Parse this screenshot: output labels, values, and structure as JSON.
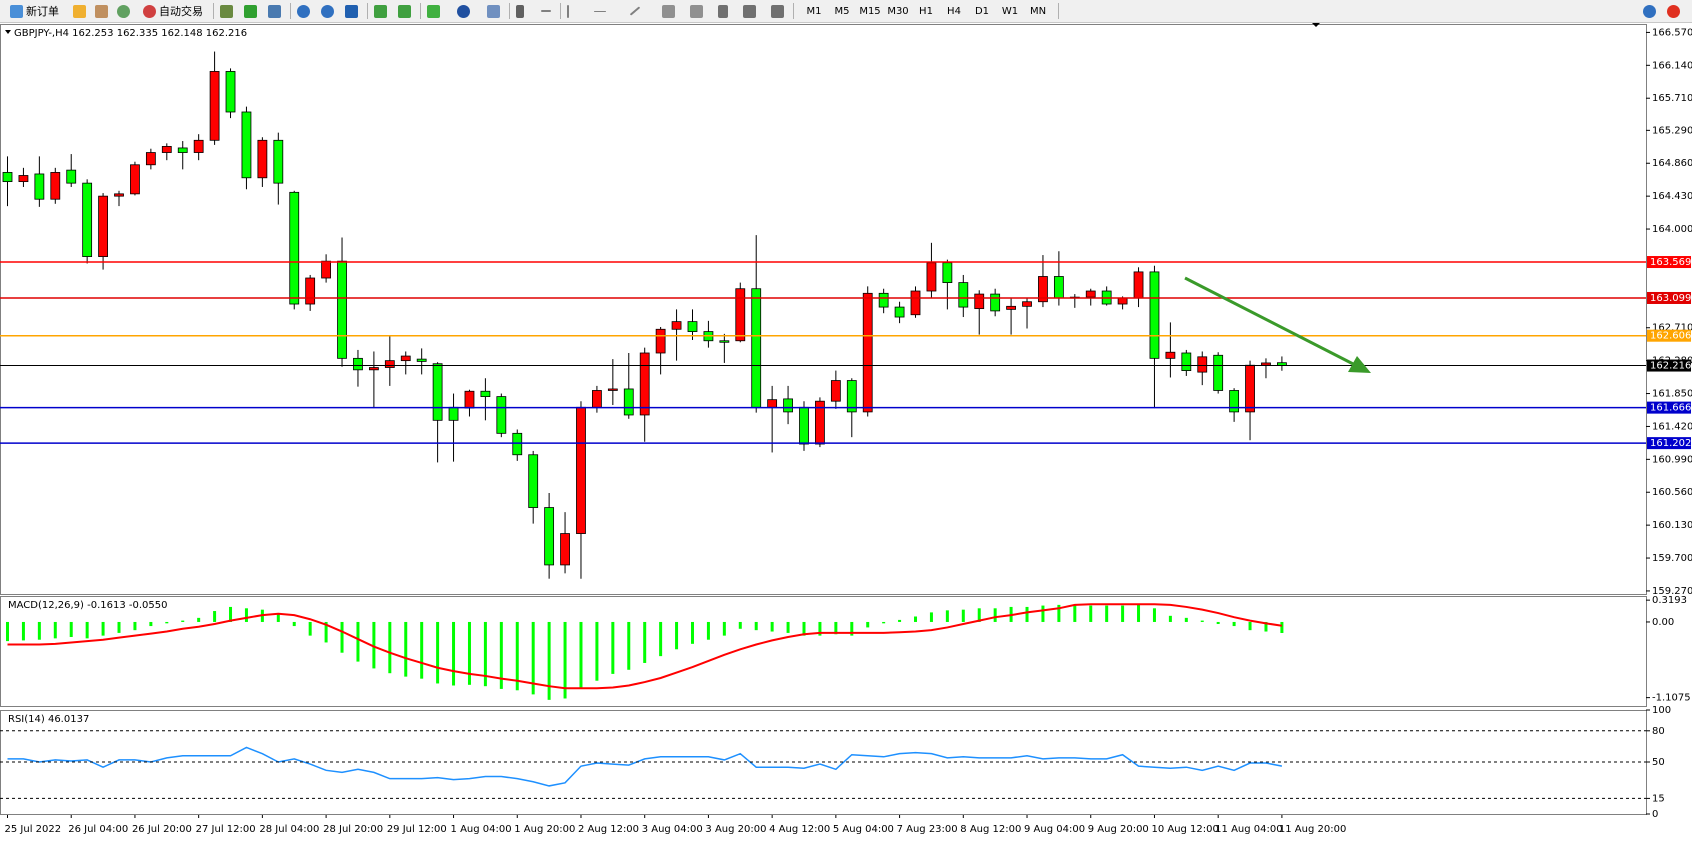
{
  "toolbar": {
    "buttons": [
      "新订单",
      "自动交易"
    ],
    "timeframes": [
      "M1",
      "M5",
      "M15",
      "M30",
      "H1",
      "H4",
      "D1",
      "W1",
      "MN"
    ]
  },
  "chart_data": [
    {
      "type": "candlestick",
      "title": "GBPJPY-,H4 162.253 162.335 162.148 162.216",
      "categories": [
        "25 Jul 2022",
        null,
        null,
        null,
        "26 Jul 04:00",
        null,
        null,
        null,
        "26 Jul 20:00",
        null,
        null,
        null,
        "27 Jul 12:00",
        null,
        null,
        null,
        "28 Jul 04:00",
        null,
        null,
        null,
        "28 Jul 20:00",
        null,
        null,
        null,
        "29 Jul 12:00",
        null,
        null,
        null,
        "1 Aug 04:00",
        null,
        null,
        null,
        "1 Aug 20:00",
        null,
        null,
        null,
        "2 Aug 12:00",
        null,
        null,
        null,
        "3 Aug 04:00",
        null,
        null,
        null,
        "3 Aug 20:00",
        null,
        null,
        null,
        "4 Aug 12:00",
        null,
        null,
        null,
        "5 Aug 04:00",
        null,
        null,
        null,
        "7 Aug 23:00",
        null,
        null,
        null,
        "8 Aug 12:00",
        null,
        null,
        null,
        "9 Aug 04:00",
        null,
        null,
        null,
        "9 Aug 20:00",
        null,
        null,
        null,
        "10 Aug 12:00",
        null,
        null,
        null,
        "11 Aug 04:00",
        null,
        null,
        null,
        "11 Aug 20:00"
      ],
      "open": [
        164.74,
        164.62,
        164.72,
        164.39,
        164.77,
        164.6,
        163.64,
        164.43,
        164.46,
        164.84,
        165.0,
        165.06,
        165.0,
        165.16,
        166.06,
        165.53,
        164.67,
        165.16,
        164.48,
        163.02,
        163.36,
        163.58,
        162.31,
        162.16,
        162.19,
        162.28,
        162.3,
        162.24,
        161.67,
        161.66,
        161.88,
        161.81,
        161.33,
        161.05,
        160.36,
        159.61,
        160.02,
        161.67,
        161.89,
        161.91,
        161.57,
        162.38,
        162.69,
        162.79,
        162.66,
        162.54,
        162.54,
        163.22,
        161.67,
        161.78,
        161.67,
        161.19,
        161.75,
        162.02,
        161.61,
        163.16,
        162.98,
        162.88,
        163.19,
        163.56,
        163.3,
        162.96,
        163.15,
        162.95,
        162.99,
        163.05,
        163.38,
        163.1,
        163.11,
        163.19,
        163.02,
        163.1,
        163.44,
        162.31,
        162.38,
        162.13,
        162.35,
        161.89,
        161.61,
        162.22,
        162.253
      ],
      "high": [
        164.95,
        164.8,
        164.95,
        164.8,
        164.98,
        164.65,
        164.47,
        164.5,
        164.88,
        165.05,
        165.12,
        165.15,
        165.24,
        166.32,
        166.1,
        165.6,
        165.2,
        165.26,
        164.5,
        163.4,
        163.67,
        163.89,
        162.42,
        162.4,
        162.6,
        162.4,
        162.44,
        162.26,
        161.85,
        161.9,
        162.05,
        161.85,
        161.38,
        161.1,
        160.55,
        160.3,
        161.75,
        161.95,
        162.3,
        162.38,
        162.45,
        162.72,
        162.95,
        162.95,
        162.8,
        162.63,
        163.3,
        163.92,
        161.95,
        161.95,
        161.75,
        161.8,
        162.15,
        162.05,
        163.25,
        163.22,
        163.05,
        163.25,
        163.82,
        163.6,
        163.4,
        163.2,
        163.22,
        163.1,
        163.1,
        163.66,
        163.71,
        163.15,
        163.22,
        163.25,
        163.12,
        163.5,
        163.52,
        162.78,
        162.42,
        162.4,
        162.39,
        161.92,
        162.28,
        162.31,
        162.335
      ],
      "low": [
        164.3,
        164.55,
        164.29,
        164.33,
        164.55,
        163.55,
        163.47,
        164.3,
        164.44,
        164.78,
        164.9,
        164.78,
        164.9,
        165.1,
        165.45,
        164.52,
        164.55,
        164.32,
        162.95,
        162.93,
        163.3,
        162.2,
        161.94,
        161.66,
        161.95,
        162.1,
        162.1,
        160.95,
        160.96,
        161.55,
        161.5,
        161.28,
        160.97,
        160.15,
        159.43,
        159.5,
        159.43,
        161.6,
        161.7,
        161.52,
        161.22,
        162.1,
        162.28,
        162.55,
        162.45,
        162.25,
        162.52,
        161.6,
        161.08,
        161.45,
        161.1,
        161.15,
        161.65,
        161.28,
        161.55,
        162.9,
        162.77,
        162.84,
        163.1,
        162.95,
        162.85,
        162.62,
        162.86,
        162.62,
        162.7,
        162.98,
        163.0,
        162.97,
        163.0,
        163.0,
        162.95,
        162.98,
        161.66,
        162.06,
        162.08,
        161.96,
        161.85,
        161.48,
        161.24,
        162.05,
        162.148
      ],
      "close": [
        164.62,
        164.7,
        164.39,
        164.74,
        164.6,
        163.64,
        164.43,
        164.46,
        164.84,
        165.0,
        165.08,
        165.0,
        165.16,
        166.06,
        165.53,
        164.67,
        165.16,
        164.6,
        163.02,
        163.36,
        163.58,
        162.31,
        162.16,
        162.19,
        162.28,
        162.34,
        162.27,
        161.5,
        161.5,
        161.88,
        161.81,
        161.33,
        161.05,
        160.36,
        159.61,
        160.02,
        161.67,
        161.89,
        161.91,
        161.57,
        162.38,
        162.69,
        162.79,
        162.66,
        162.54,
        162.52,
        163.22,
        161.67,
        161.77,
        161.61,
        161.19,
        161.75,
        162.02,
        161.61,
        163.16,
        162.98,
        162.85,
        163.19,
        163.56,
        163.3,
        162.98,
        163.15,
        162.93,
        162.99,
        163.05,
        163.38,
        163.1,
        163.11,
        163.19,
        163.02,
        163.1,
        163.44,
        162.31,
        162.39,
        162.15,
        162.33,
        161.89,
        161.61,
        162.22,
        162.25,
        162.216
      ],
      "up_color": "#ff0000",
      "down_color": "#00ff00",
      "ylim": [
        159.23,
        166.68
      ],
      "yticks": [
        {
          "value": 166.57,
          "label": "166.570"
        },
        {
          "value": 166.14,
          "label": "166.140"
        },
        {
          "value": 165.71,
          "label": "165.710"
        },
        {
          "value": 165.29,
          "label": "165.290"
        },
        {
          "value": 164.86,
          "label": "164.860"
        },
        {
          "value": 164.43,
          "label": "164.430"
        },
        {
          "value": 164,
          "label": "164.000"
        },
        {
          "value": 162.71,
          "label": "162.710"
        },
        {
          "value": 162.28,
          "label": "162.280"
        },
        {
          "value": 161.85,
          "label": "161.850"
        },
        {
          "value": 161.42,
          "label": "161.420"
        },
        {
          "value": 160.99,
          "label": "160.990"
        },
        {
          "value": 160.56,
          "label": "160.560"
        },
        {
          "value": 160.13,
          "label": "160.130"
        },
        {
          "value": 159.7,
          "label": "159.700"
        },
        {
          "value": 159.27,
          "label": "159.270"
        }
      ],
      "levels": [
        {
          "value": 163.569,
          "color": "#ff0000"
        },
        {
          "value": 163.099,
          "color": "#e00000"
        },
        {
          "value": 162.606,
          "color": "#ffa500"
        },
        {
          "value": 162.216,
          "color": "#000000"
        },
        {
          "value": 161.666,
          "color": "#0000cc"
        },
        {
          "value": 161.202,
          "color": "#0000cc"
        }
      ]
    },
    {
      "type": "macd",
      "title": "MACD(12,26,9) -0.1613 -0.0550",
      "histogram": {
        "color": "#00ff00",
        "values": [
          -0.28,
          -0.27,
          -0.26,
          -0.24,
          -0.22,
          -0.24,
          -0.2,
          -0.16,
          -0.12,
          -0.06,
          -0.02,
          0.02,
          0.06,
          0.16,
          0.22,
          0.2,
          0.18,
          0.12,
          -0.06,
          -0.2,
          -0.3,
          -0.45,
          -0.58,
          -0.68,
          -0.75,
          -0.8,
          -0.83,
          -0.9,
          -0.93,
          -0.92,
          -0.94,
          -0.98,
          -1.0,
          -1.06,
          -1.14,
          -1.12,
          -0.98,
          -0.86,
          -0.76,
          -0.7,
          -0.6,
          -0.5,
          -0.4,
          -0.32,
          -0.26,
          -0.2,
          -0.1,
          -0.12,
          -0.14,
          -0.16,
          -0.2,
          -0.2,
          -0.18,
          -0.2,
          -0.08,
          -0.02,
          0.03,
          0.08,
          0.14,
          0.17,
          0.18,
          0.2,
          0.2,
          0.22,
          0.22,
          0.24,
          0.25,
          0.25,
          0.24,
          0.24,
          0.24,
          0.25,
          0.2,
          0.09,
          0.06,
          0.02,
          -0.03,
          -0.06,
          -0.12,
          -0.14,
          -0.1613
        ]
      },
      "signal": {
        "color": "#ff0000",
        "values": [
          -0.33,
          -0.33,
          -0.33,
          -0.32,
          -0.3,
          -0.28,
          -0.26,
          -0.23,
          -0.2,
          -0.17,
          -0.14,
          -0.1,
          -0.07,
          -0.03,
          0.02,
          0.06,
          0.1,
          0.12,
          0.1,
          0.04,
          -0.04,
          -0.14,
          -0.25,
          -0.36,
          -0.45,
          -0.53,
          -0.6,
          -0.67,
          -0.72,
          -0.76,
          -0.79,
          -0.83,
          -0.86,
          -0.9,
          -0.94,
          -0.97,
          -0.97,
          -0.97,
          -0.96,
          -0.93,
          -0.88,
          -0.82,
          -0.74,
          -0.66,
          -0.57,
          -0.48,
          -0.4,
          -0.33,
          -0.27,
          -0.22,
          -0.18,
          -0.16,
          -0.16,
          -0.16,
          -0.16,
          -0.16,
          -0.15,
          -0.14,
          -0.12,
          -0.08,
          -0.03,
          0.02,
          0.07,
          0.1,
          0.14,
          0.17,
          0.2,
          0.25,
          0.26,
          0.26,
          0.26,
          0.26,
          0.26,
          0.25,
          0.22,
          0.18,
          0.13,
          0.07,
          0.02,
          -0.02,
          -0.055
        ]
      },
      "ylim": [
        -1.23,
        0.38
      ],
      "yticks": [
        0.3193,
        {
          "value": 0,
          "label": "0.00"
        },
        -1.1075
      ]
    },
    {
      "type": "rsi",
      "title": "RSI(14) 46.0137",
      "color": "#1e90ff",
      "values": [
        53,
        53,
        50,
        52,
        51,
        52,
        45,
        52,
        52,
        50,
        54,
        56,
        56,
        56,
        56,
        64,
        58,
        50,
        53,
        48,
        42,
        40,
        43,
        40,
        34,
        34,
        34,
        35,
        33,
        34,
        36,
        36,
        34,
        31,
        27,
        30,
        46,
        49,
        48,
        47,
        53,
        55,
        55,
        55,
        55,
        52,
        58,
        45,
        45,
        45,
        44,
        48,
        43,
        57,
        56,
        55,
        58,
        59,
        58,
        54,
        55,
        54,
        54,
        54,
        56,
        53,
        54,
        54,
        53,
        53,
        57,
        46,
        45,
        44,
        45,
        42,
        46,
        42,
        49,
        49,
        46.0137
      ],
      "ylim": [
        0,
        100
      ],
      "yticks": [
        100,
        80,
        50,
        15,
        0
      ],
      "levels": [
        80,
        50,
        15
      ]
    }
  ]
}
